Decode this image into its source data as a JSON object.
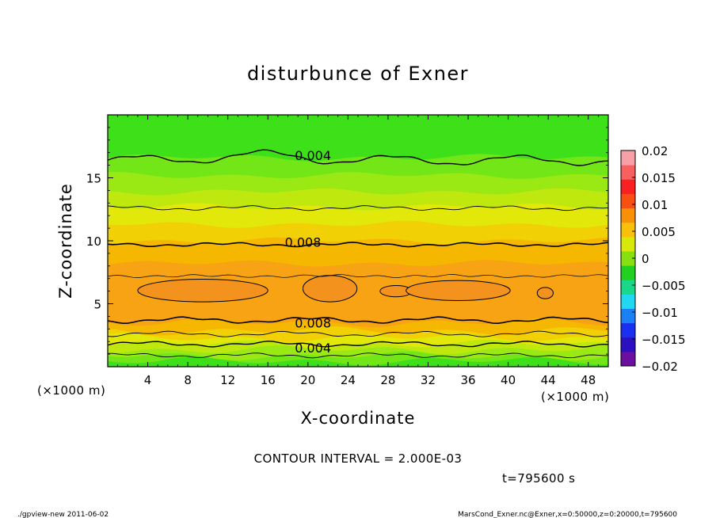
{
  "chart_data": {
    "type": "heatmap",
    "title": "disturbunce of Exner",
    "xlabel": "X-coordinate",
    "ylabel": "Z-coordinate",
    "x_unit": "(×1000 m)",
    "y_unit": "(×1000 m)",
    "xlim": [
      0,
      50
    ],
    "ylim": [
      0,
      20
    ],
    "x_ticks": [
      4,
      8,
      12,
      16,
      20,
      24,
      28,
      32,
      36,
      40,
      44,
      48
    ],
    "y_ticks": [
      5,
      10,
      15
    ],
    "colorbar": {
      "ticks": [
        0.02,
        0.015,
        0.01,
        0.005,
        0,
        -0.005,
        -0.01,
        -0.015,
        -0.02
      ],
      "tick_labels": [
        "0.02",
        "0.015",
        "0.01",
        "0.005",
        "0",
        "−0.005",
        "−0.01",
        "−0.015",
        "−0.02"
      ],
      "range": [
        -0.02,
        0.02
      ]
    },
    "contour_labels": [
      {
        "text": "0.004",
        "x": 20.5,
        "z": 16.8
      },
      {
        "text": "0.008",
        "x": 19.5,
        "z": 9.9
      },
      {
        "text": "0.008",
        "x": 20.5,
        "z": 3.5
      },
      {
        "text": "0.004",
        "x": 20.5,
        "z": 1.5
      }
    ],
    "contour_interval_text": "CONTOUR INTERVAL = 2.000E-03",
    "time_text": "t=795600  s"
  },
  "footer": {
    "left": "./gpview-new   2011-06-02",
    "right": "MarsCond_Exner.nc@Exner,x=0:50000,z=0:20000,t=795600"
  },
  "colors": {
    "band_cols": [
      "#3ee01a",
      "#72e617",
      "#9ae814",
      "#bfe80f",
      "#e1e80a",
      "#f1d005",
      "#f6b700",
      "#f7a313"
    ],
    "blob_fill": "#f3921d",
    "colorbar_stops": [
      "#6a0fa0",
      "#2a10c0",
      "#1a30f0",
      "#1a80f5",
      "#20d8f0",
      "#18d88a",
      "#22d020",
      "#88e010",
      "#d8e808",
      "#f8c008",
      "#f89008",
      "#f85010",
      "#f82020",
      "#f86060",
      "#f8a0a8"
    ]
  }
}
